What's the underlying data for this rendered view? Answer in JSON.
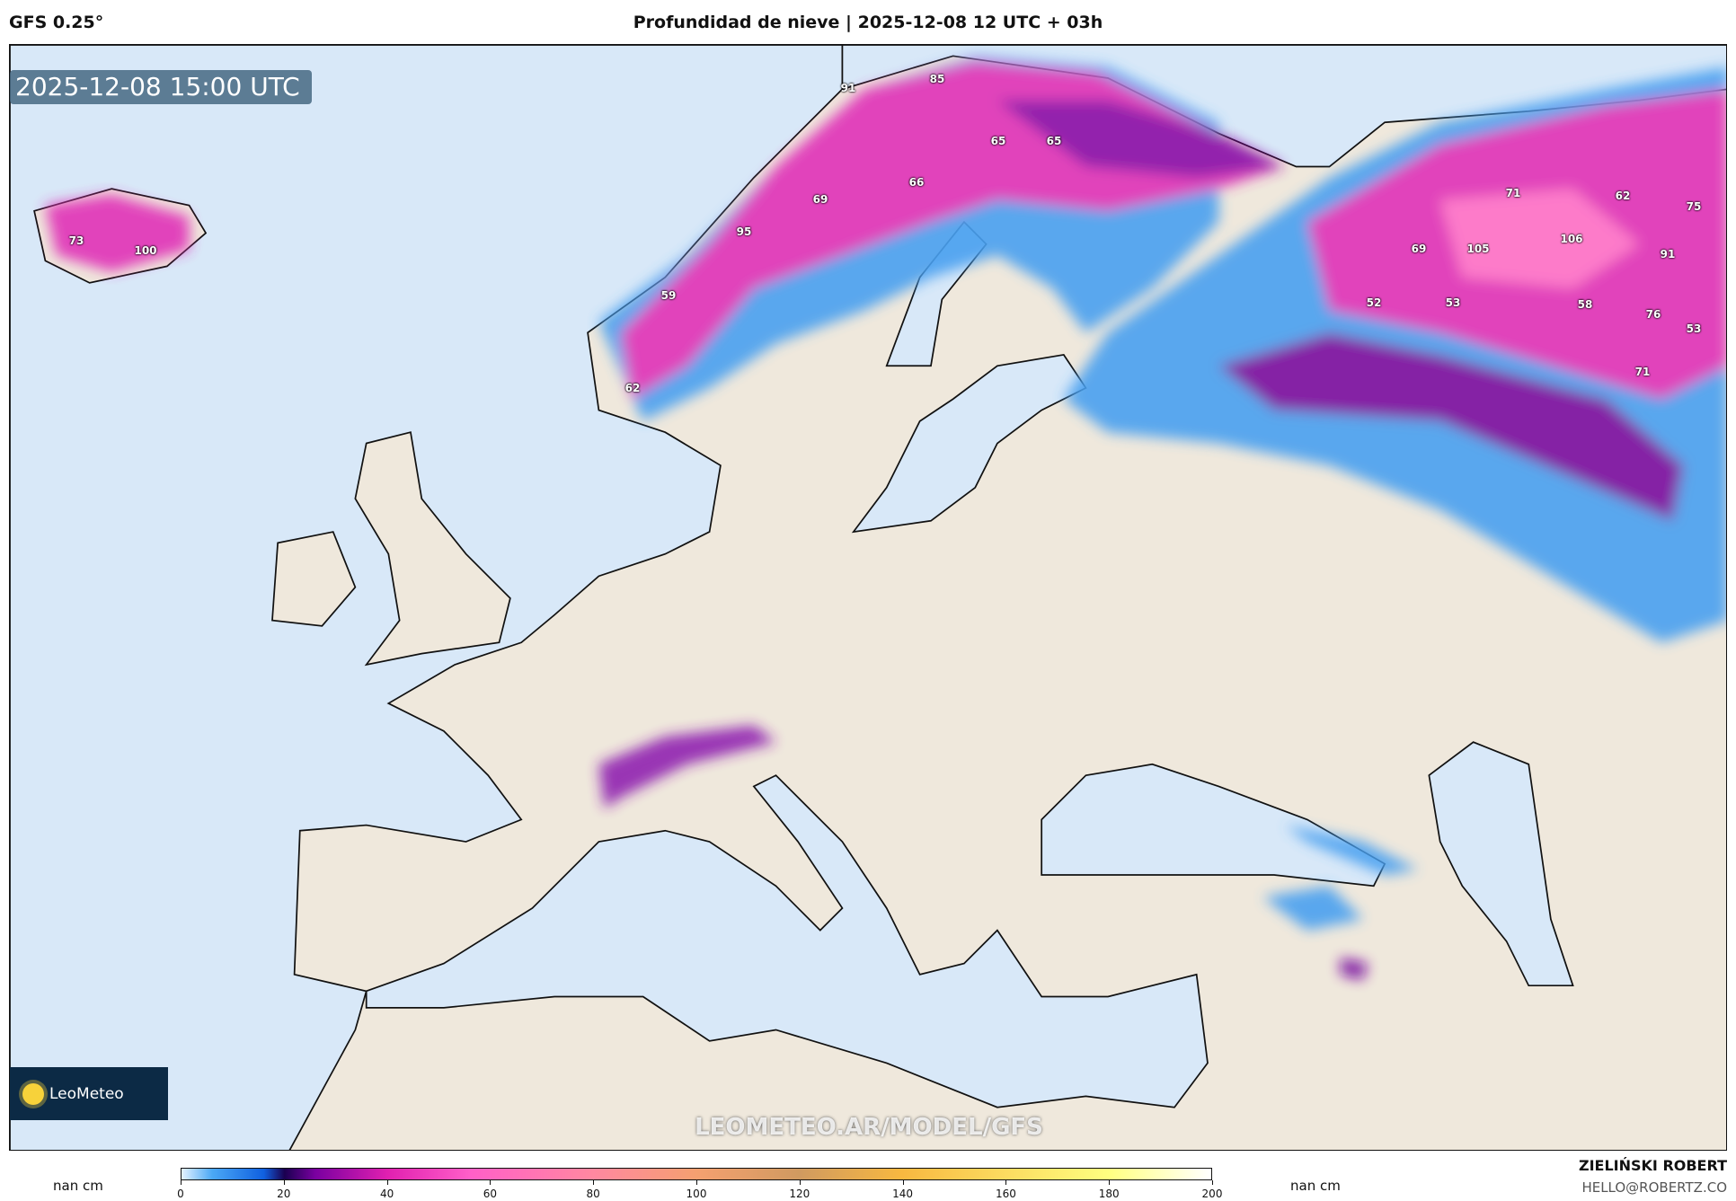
{
  "header": {
    "model": "GFS 0.25°",
    "title": "Profundidad de nieve | 2025-12-08 12 UTC + 03h"
  },
  "map": {
    "valid_time": "2025-12-08 15:00 UTC",
    "watermark": "LEOMETEO.AR/MODEL/GFS",
    "logo": "LeoMeteo",
    "snow_depth_labels": [
      "91",
      "85",
      "65",
      "65",
      "66",
      "69",
      "95",
      "59",
      "62",
      "73",
      "100",
      "71",
      "62",
      "75",
      "69",
      "105",
      "106",
      "91",
      "52",
      "53",
      "58",
      "76",
      "53",
      "71"
    ],
    "colors": {
      "ocean": "#d8e8f8",
      "land": "#efe8dc"
    }
  },
  "legend": {
    "nan_left": "nan cm",
    "nan_right": "nan cm",
    "unit": "cm",
    "range": [
      0,
      200
    ],
    "ticks": [
      "0",
      "20",
      "40",
      "60",
      "80",
      "100",
      "120",
      "140",
      "160",
      "180",
      "200"
    ]
  },
  "credits": {
    "author": "ZIELIŃSKI ROBERT",
    "email": "HELLO@ROBERTZ.CO"
  }
}
